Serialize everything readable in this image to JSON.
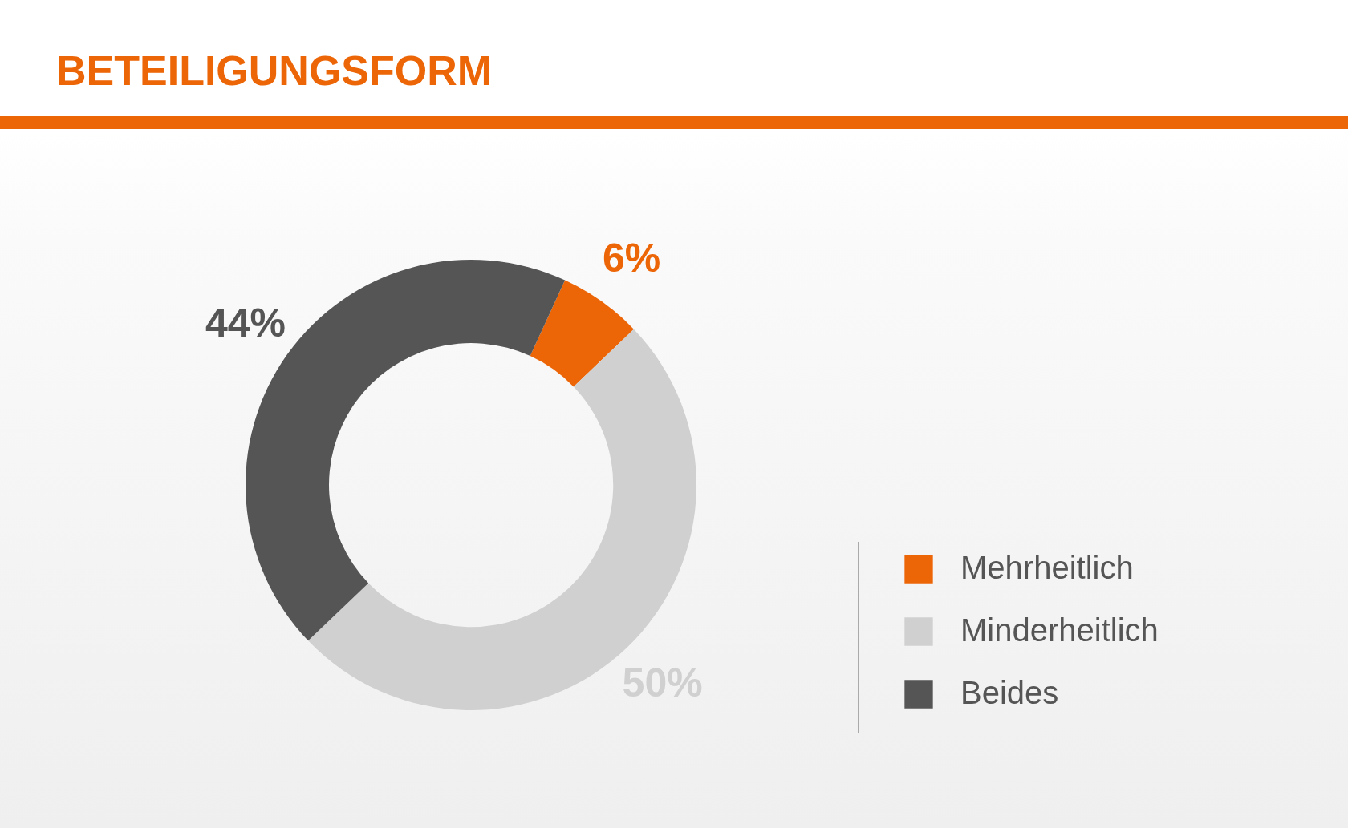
{
  "chart_data": {
    "type": "donut",
    "title": "BETEILIGUNGSFORM",
    "categories": [
      "Mehrheitlich",
      "Minderheitlich",
      "Beides"
    ],
    "values": [
      6,
      50,
      44
    ],
    "colors": [
      "#ec6608",
      "#d0d0d0",
      "#555555"
    ],
    "value_labels": [
      "6%",
      "50%",
      "44%"
    ],
    "legend": "right"
  }
}
